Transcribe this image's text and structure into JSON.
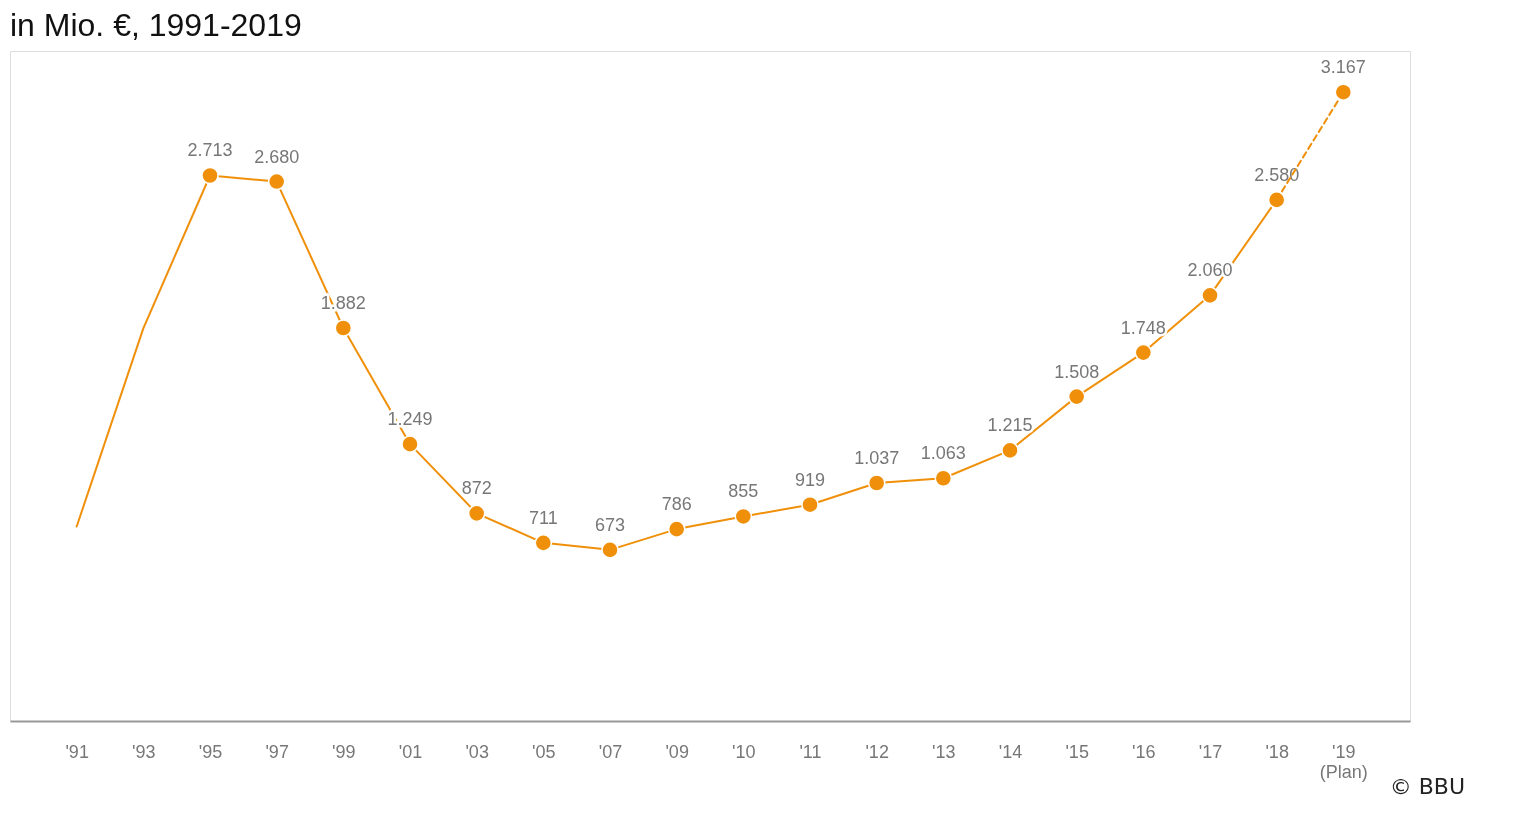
{
  "chart_data": {
    "type": "line",
    "title": "in Mio. €, 1991-2019",
    "categories": [
      "'91",
      "'93",
      "'95",
      "'97",
      "'99",
      "'01",
      "'03",
      "'05",
      "'07",
      "'09",
      "'10",
      "'11",
      "'12",
      "'13",
      "'14",
      "'15",
      "'16",
      "'17",
      "'18",
      "'19\n(Plan)"
    ],
    "series": [
      {
        "color": "#f0900a",
        "marker": "none",
        "line_style": "solid",
        "values": [
          800,
          1880,
          2713,
          null,
          null,
          null,
          null,
          null,
          null,
          null,
          null,
          null,
          null,
          null,
          null,
          null,
          null,
          null,
          null,
          null
        ]
      },
      {
        "color": "#f0900a",
        "marker": "circle",
        "line_style": "solid",
        "values": [
          null,
          null,
          2713,
          2680,
          1882,
          1249,
          872,
          711,
          673,
          786,
          855,
          919,
          1037,
          1063,
          1215,
          1508,
          1748,
          2060,
          2580,
          null
        ],
        "value_labels": [
          null,
          null,
          "2.713",
          "2.680",
          "1.882",
          "1.249",
          "872",
          "711",
          "673",
          "786",
          "855",
          "919",
          "1.037",
          "1.063",
          "1.215",
          "1.508",
          "1.748",
          "2.060",
          "2.580",
          null
        ]
      },
      {
        "color": "#f0900a",
        "marker": "circle",
        "line_style": "dashed",
        "values": [
          null,
          null,
          null,
          null,
          null,
          null,
          null,
          null,
          null,
          null,
          null,
          null,
          null,
          null,
          null,
          null,
          null,
          null,
          2580,
          3167
        ],
        "value_labels": [
          null,
          null,
          null,
          null,
          null,
          null,
          null,
          null,
          null,
          null,
          null,
          null,
          null,
          null,
          null,
          null,
          null,
          null,
          null,
          "3.167"
        ]
      }
    ],
    "grid": false,
    "annotations": [
      "© BBU"
    ]
  }
}
